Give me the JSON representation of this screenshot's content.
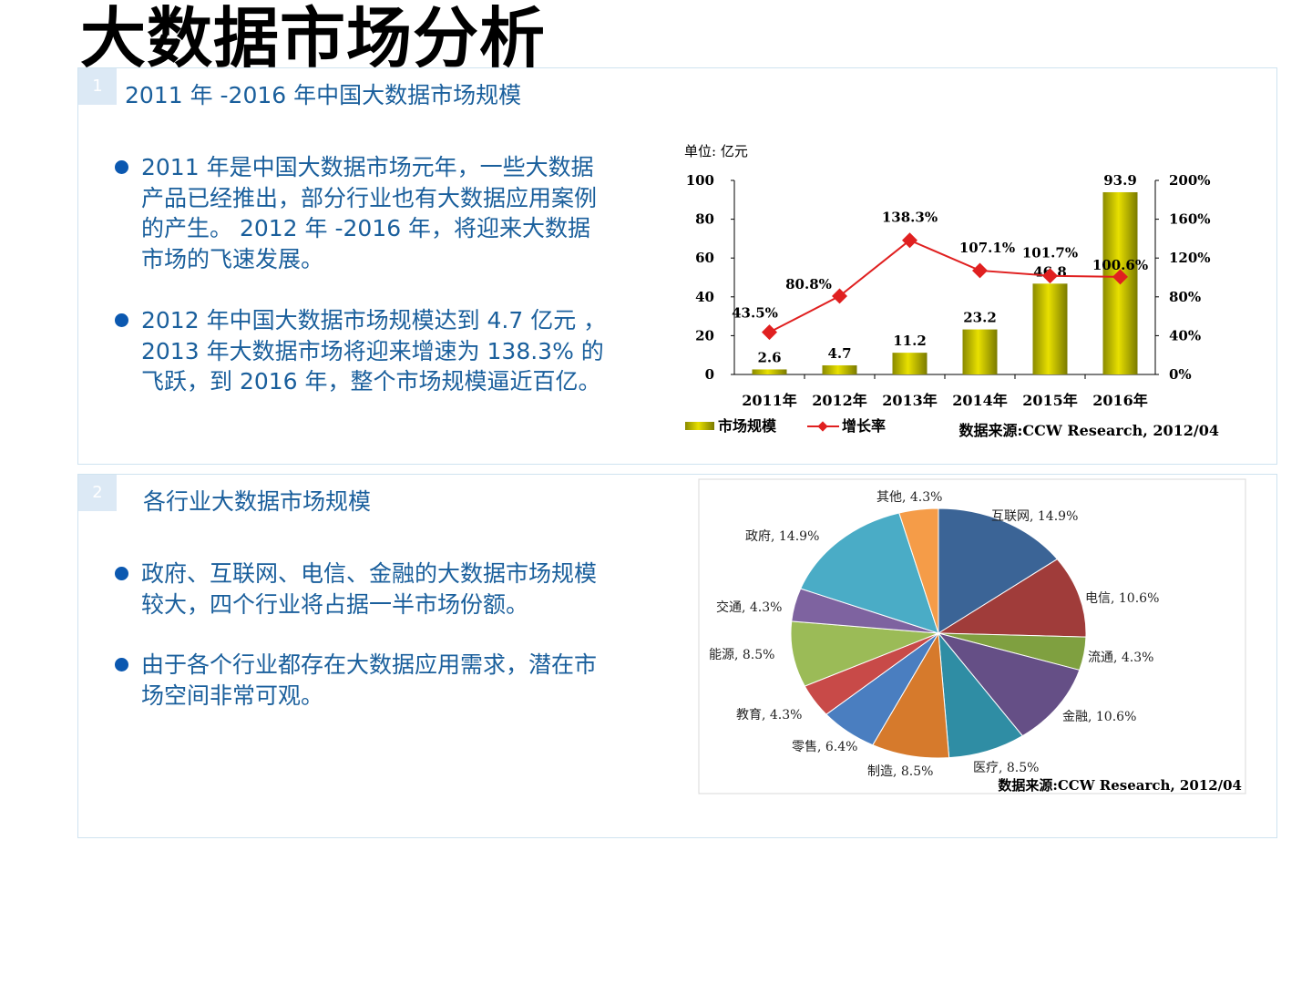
{
  "page": {
    "title": "大数据市场分析"
  },
  "section1": {
    "number": "1",
    "heading": "2011 年 -2016 年中国大数据市场规模",
    "bullets": [
      "2011 年是中国大数据市场元年，一些大数据产品已经推出，部分行业也有大数据应用案例的产生。 2012 年 -2016 年，将迎来大数据市场的飞速发展。",
      "2012 年中国大数据市场规模达到 4.7 亿元 ， 2013 年大数据市场将迎来增速为 138.3% 的飞跃，到 2016 年，整个市场规模逼近百亿。"
    ]
  },
  "section2": {
    "number": "2",
    "heading": "各行业大数据市场规模",
    "bullets": [
      "政府、互联网、电信、金融的大数据市场规模较大，四个行业将占据一半市场份额。",
      "由于各个行业都存在大数据应用需求，潜在市场空间非常可观。"
    ]
  },
  "chart_data": [
    {
      "type": "bar",
      "unit_label": "单位: 亿元",
      "categories": [
        "2011年",
        "2012年",
        "2013年",
        "2014年",
        "2015年",
        "2016年"
      ],
      "series": [
        {
          "name": "市场规模",
          "type": "bar",
          "values": [
            2.6,
            4.7,
            11.2,
            23.2,
            46.8,
            93.9
          ],
          "labels": [
            "2.6",
            "4.7",
            "11.2",
            "23.2",
            "46.8",
            "93.9"
          ],
          "color": "#e8e000"
        },
        {
          "name": "增长率",
          "type": "line",
          "axis": "right",
          "values": [
            43.5,
            80.8,
            138.3,
            107.1,
            101.7,
            100.6
          ],
          "labels": [
            "43.5%",
            "80.8%",
            "138.3%",
            "107.1%",
            "101.7%",
            "100.6%"
          ],
          "color": "#e02020"
        }
      ],
      "y_left": {
        "ylim": [
          0,
          100
        ],
        "ticks": [
          "0",
          "20",
          "40",
          "60",
          "80",
          "100"
        ]
      },
      "y_right": {
        "ylim": [
          0,
          200
        ],
        "ticks": [
          "0%",
          "40%",
          "80%",
          "120%",
          "160%",
          "200%"
        ]
      },
      "legend_position": "bottom-left",
      "source": "数据来源:CCW Research, 2012/04"
    },
    {
      "type": "pie",
      "slices": [
        {
          "label": "互联网, 14.9%",
          "value": 14.9,
          "color": "#3b6496"
        },
        {
          "label": "电信, 10.6%",
          "value": 10.6,
          "color": "#a03c3a"
        },
        {
          "label": "流通, 4.3%",
          "value": 4.3,
          "color": "#7fa040"
        },
        {
          "label": "金融, 10.6%",
          "value": 10.6,
          "color": "#654f86"
        },
        {
          "label": "医疗, 8.5%",
          "value": 8.5,
          "color": "#2f8da4"
        },
        {
          "label": "制造, 8.5%",
          "value": 8.5,
          "color": "#d67a2c"
        },
        {
          "label": "零售, 6.4%",
          "value": 6.4,
          "color": "#4a7ec0"
        },
        {
          "label": "教育, 4.3%",
          "value": 4.3,
          "color": "#c84a48"
        },
        {
          "label": "能源, 8.5%",
          "value": 8.5,
          "color": "#9bbb57"
        },
        {
          "label": "交通, 4.3%",
          "value": 4.3,
          "color": "#7e63a0"
        },
        {
          "label": "政府, 14.9%",
          "value": 14.9,
          "color": "#4aacc6"
        },
        {
          "label": "其他, 4.3%",
          "value": 4.3,
          "color": "#f59c48"
        }
      ],
      "source": "数据来源:CCW Research, 2012/04"
    }
  ]
}
